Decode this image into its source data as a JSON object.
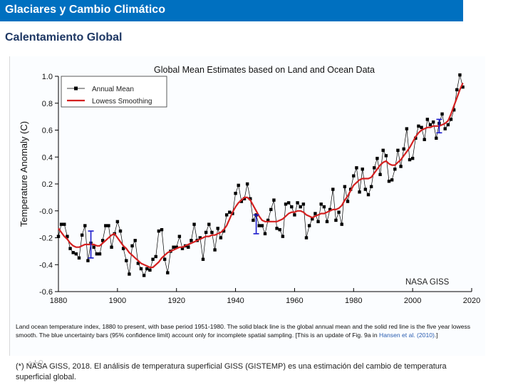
{
  "header": {
    "title": "Glaciares y Cambio Climático",
    "bg_color": "#0070c0"
  },
  "section": {
    "title": "Calentamiento Global"
  },
  "figure": {
    "toolbar_icons": [
      "home-icon",
      "pan-icon",
      "zoom-icon"
    ],
    "caption_text": "Land ocean temperature index, 1880 to present, with base period 1951-1980. The solid black line is the global annual mean and the solid red line is the five year lowess smooth. The blue uncertainty bars (95% confidence limit) account only for incomplete spatial sampling. [This is an update of Fig. 9a in ",
    "caption_link": "Hansen et al. (2010)",
    "caption_end": ".]"
  },
  "footnote": "(*) NASA GISS, 2018. El análisis de temperatura superficial GISS (GISTEMP) es una estimación del cambio de temperatura superficial global.",
  "chart_data": {
    "type": "line",
    "title": "Global Mean Estimates based on Land and Ocean Data",
    "xlabel": "",
    "ylabel": "Temperature Anomaly (C)",
    "xlim": [
      1880,
      2020
    ],
    "ylim": [
      -0.6,
      1.0
    ],
    "x_ticks": [
      1880,
      1900,
      1920,
      1940,
      1960,
      1980,
      2000,
      2020
    ],
    "y_ticks": [
      1.0,
      0.8,
      0.6,
      0.4,
      0.2,
      0.0,
      -0.2,
      -0.4,
      -0.6
    ],
    "y_tick_labels": [
      "1.0",
      "0.8",
      "0.6",
      "0.4",
      "0.2",
      "-0.0",
      "-0.2",
      "-0.4",
      "-0.6"
    ],
    "grid": false,
    "legend": {
      "position": "top-left",
      "entries": [
        "Annual Mean",
        "Lowess Smoothing"
      ]
    },
    "annotation": "NASA GISS",
    "colors": {
      "annual": "#000000",
      "smooth": "#d42020",
      "uncertainty": "#1a1acc"
    },
    "x": [
      1880,
      1881,
      1882,
      1883,
      1884,
      1885,
      1886,
      1887,
      1888,
      1889,
      1890,
      1891,
      1892,
      1893,
      1894,
      1895,
      1896,
      1897,
      1898,
      1899,
      1900,
      1901,
      1902,
      1903,
      1904,
      1905,
      1906,
      1907,
      1908,
      1909,
      1910,
      1911,
      1912,
      1913,
      1914,
      1915,
      1916,
      1917,
      1918,
      1919,
      1920,
      1921,
      1922,
      1923,
      1924,
      1925,
      1926,
      1927,
      1928,
      1929,
      1930,
      1931,
      1932,
      1933,
      1934,
      1935,
      1936,
      1937,
      1938,
      1939,
      1940,
      1941,
      1942,
      1943,
      1944,
      1945,
      1946,
      1947,
      1948,
      1949,
      1950,
      1951,
      1952,
      1953,
      1954,
      1955,
      1956,
      1957,
      1958,
      1959,
      1960,
      1961,
      1962,
      1963,
      1964,
      1965,
      1966,
      1967,
      1968,
      1969,
      1970,
      1971,
      1972,
      1973,
      1974,
      1975,
      1976,
      1977,
      1978,
      1979,
      1980,
      1981,
      1982,
      1983,
      1984,
      1985,
      1986,
      1987,
      1988,
      1989,
      1990,
      1991,
      1992,
      1993,
      1994,
      1995,
      1996,
      1997,
      1998,
      1999,
      2000,
      2001,
      2002,
      2003,
      2004,
      2005,
      2006,
      2007,
      2008,
      2009,
      2010,
      2011,
      2012,
      2013,
      2014,
      2015,
      2016,
      2017
    ],
    "series": [
      {
        "name": "Annual Mean",
        "values": [
          -0.19,
          -0.1,
          -0.1,
          -0.19,
          -0.28,
          -0.31,
          -0.32,
          -0.35,
          -0.18,
          -0.11,
          -0.37,
          -0.24,
          -0.27,
          -0.32,
          -0.32,
          -0.22,
          -0.11,
          -0.11,
          -0.27,
          -0.17,
          -0.08,
          -0.15,
          -0.28,
          -0.37,
          -0.47,
          -0.26,
          -0.22,
          -0.39,
          -0.43,
          -0.48,
          -0.43,
          -0.44,
          -0.36,
          -0.34,
          -0.15,
          -0.14,
          -0.36,
          -0.46,
          -0.3,
          -0.27,
          -0.27,
          -0.19,
          -0.28,
          -0.26,
          -0.27,
          -0.22,
          -0.1,
          -0.22,
          -0.2,
          -0.36,
          -0.16,
          -0.1,
          -0.16,
          -0.29,
          -0.13,
          -0.2,
          -0.15,
          -0.03,
          -0.01,
          -0.02,
          0.13,
          0.19,
          0.07,
          0.09,
          0.2,
          0.09,
          -0.07,
          -0.03,
          -0.11,
          -0.11,
          -0.17,
          -0.07,
          0.01,
          0.08,
          -0.13,
          -0.14,
          -0.19,
          0.05,
          0.06,
          0.03,
          -0.03,
          0.06,
          0.03,
          0.05,
          -0.2,
          -0.11,
          -0.06,
          -0.02,
          -0.08,
          0.05,
          0.03,
          -0.08,
          0.01,
          0.16,
          -0.07,
          -0.01,
          -0.1,
          0.18,
          0.07,
          0.16,
          0.26,
          0.32,
          0.14,
          0.31,
          0.16,
          0.12,
          0.18,
          0.32,
          0.39,
          0.27,
          0.45,
          0.41,
          0.22,
          0.23,
          0.31,
          0.45,
          0.33,
          0.46,
          0.61,
          0.38,
          0.39,
          0.54,
          0.63,
          0.62,
          0.53,
          0.68,
          0.64,
          0.66,
          0.54,
          0.65,
          0.72,
          0.61,
          0.64,
          0.68,
          0.75,
          0.9,
          1.01,
          0.92
        ]
      },
      {
        "name": "Lowess Smoothing",
        "values": [
          -0.13,
          -0.16,
          -0.19,
          -0.21,
          -0.24,
          -0.26,
          -0.27,
          -0.27,
          -0.26,
          -0.25,
          -0.25,
          -0.25,
          -0.25,
          -0.26,
          -0.26,
          -0.24,
          -0.22,
          -0.2,
          -0.18,
          -0.17,
          -0.2,
          -0.23,
          -0.26,
          -0.28,
          -0.31,
          -0.33,
          -0.35,
          -0.37,
          -0.39,
          -0.4,
          -0.41,
          -0.42,
          -0.42,
          -0.4,
          -0.38,
          -0.35,
          -0.33,
          -0.31,
          -0.3,
          -0.29,
          -0.28,
          -0.27,
          -0.27,
          -0.26,
          -0.25,
          -0.24,
          -0.23,
          -0.22,
          -0.21,
          -0.2,
          -0.19,
          -0.19,
          -0.18,
          -0.18,
          -0.17,
          -0.16,
          -0.14,
          -0.11,
          -0.06,
          -0.01,
          0.03,
          0.06,
          0.08,
          0.1,
          0.1,
          0.08,
          0.04,
          0.0,
          -0.04,
          -0.07,
          -0.08,
          -0.08,
          -0.08,
          -0.08,
          -0.08,
          -0.07,
          -0.06,
          -0.04,
          -0.02,
          -0.01,
          -0.01,
          0.0,
          0.0,
          -0.01,
          -0.03,
          -0.04,
          -0.05,
          -0.04,
          -0.03,
          -0.02,
          -0.02,
          -0.01,
          0.0,
          0.01,
          0.01,
          0.02,
          0.04,
          0.08,
          0.11,
          0.15,
          0.19,
          0.21,
          0.23,
          0.24,
          0.24,
          0.24,
          0.25,
          0.28,
          0.31,
          0.34,
          0.36,
          0.37,
          0.35,
          0.34,
          0.34,
          0.36,
          0.38,
          0.41,
          0.44,
          0.47,
          0.51,
          0.55,
          0.58,
          0.6,
          0.61,
          0.62,
          0.62,
          0.63,
          0.63,
          0.63,
          0.64,
          0.65,
          0.67,
          0.72,
          0.78,
          0.84,
          0.9,
          0.95
        ]
      }
    ],
    "uncertainty_bars": [
      {
        "year": 1891,
        "center": -0.24,
        "low": -0.35,
        "high": -0.15
      },
      {
        "year": 1947,
        "center": -0.1,
        "low": -0.17,
        "high": -0.03
      },
      {
        "year": 2009,
        "center": 0.63,
        "low": 0.58,
        "high": 0.68
      }
    ]
  }
}
